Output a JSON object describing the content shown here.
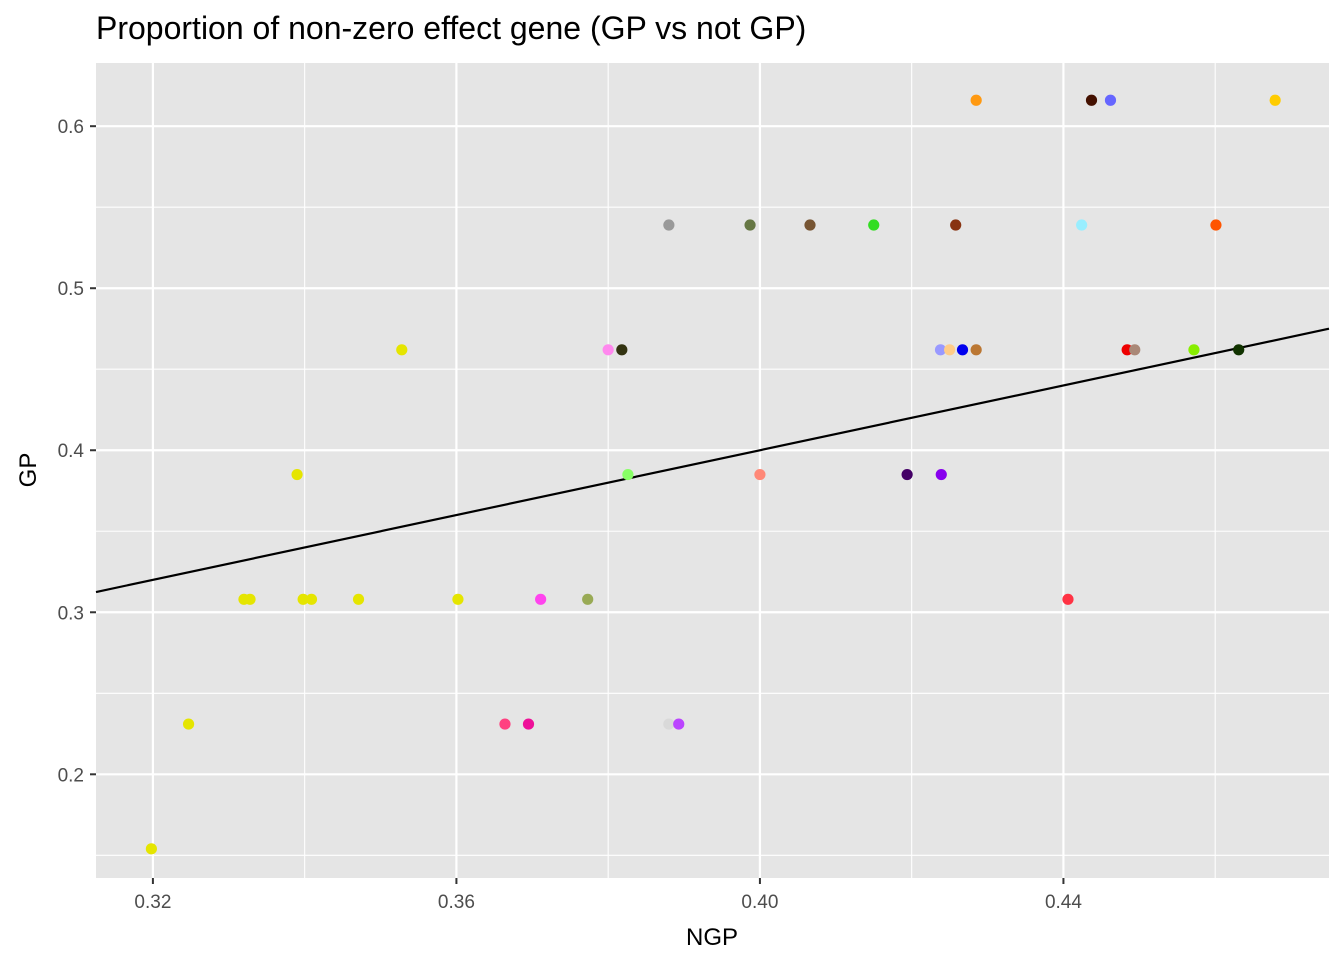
{
  "chart_data": {
    "type": "scatter",
    "title": "Proportion of non-zero effect gene (GP vs not GP)",
    "xlabel": "NGP",
    "ylabel": "GP",
    "xlim": [
      0.3125,
      0.475
    ],
    "ylim": [
      0.136,
      0.639
    ],
    "x_ticks": [
      0.32,
      0.36,
      0.4,
      0.44
    ],
    "x_tick_labels": [
      "0.32",
      "0.36",
      "0.40",
      "0.44"
    ],
    "y_ticks": [
      0.2,
      0.3,
      0.4,
      0.5,
      0.6
    ],
    "y_tick_labels": [
      "0.2",
      "0.3",
      "0.4",
      "0.5",
      "0.6"
    ],
    "grid": true,
    "background": "#e5e5e5",
    "grid_color": "#ffffff",
    "legend": "none",
    "points": [
      {
        "x": 0.3198,
        "y": 0.154,
        "color": "#e5e500"
      },
      {
        "x": 0.3247,
        "y": 0.231,
        "color": "#e5e500"
      },
      {
        "x": 0.332,
        "y": 0.308,
        "color": "#e5e500"
      },
      {
        "x": 0.3328,
        "y": 0.308,
        "color": "#e5e500"
      },
      {
        "x": 0.339,
        "y": 0.385,
        "color": "#e5e500"
      },
      {
        "x": 0.3398,
        "y": 0.308,
        "color": "#e5e500"
      },
      {
        "x": 0.3409,
        "y": 0.308,
        "color": "#e5e500"
      },
      {
        "x": 0.3471,
        "y": 0.308,
        "color": "#e5e500"
      },
      {
        "x": 0.3528,
        "y": 0.462,
        "color": "#e5e500"
      },
      {
        "x": 0.3602,
        "y": 0.308,
        "color": "#e5e500"
      },
      {
        "x": 0.3664,
        "y": 0.231,
        "color": "#ff4080"
      },
      {
        "x": 0.3695,
        "y": 0.231,
        "color": "#ee1099"
      },
      {
        "x": 0.3711,
        "y": 0.308,
        "color": "#ff44ee"
      },
      {
        "x": 0.3773,
        "y": 0.308,
        "color": "#99aa55"
      },
      {
        "x": 0.38,
        "y": 0.462,
        "color": "#ff88ee"
      },
      {
        "x": 0.3818,
        "y": 0.462,
        "color": "#333311"
      },
      {
        "x": 0.3826,
        "y": 0.385,
        "color": "#88ff66"
      },
      {
        "x": 0.388,
        "y": 0.231,
        "color": "#d9d9d9"
      },
      {
        "x": 0.388,
        "y": 0.539,
        "color": "#999999"
      },
      {
        "x": 0.3893,
        "y": 0.231,
        "color": "#bb44ff"
      },
      {
        "x": 0.3987,
        "y": 0.539,
        "color": "#667744"
      },
      {
        "x": 0.4,
        "y": 0.385,
        "color": "#ff8877"
      },
      {
        "x": 0.4066,
        "y": 0.539,
        "color": "#775533"
      },
      {
        "x": 0.415,
        "y": 0.539,
        "color": "#33dd22"
      },
      {
        "x": 0.4194,
        "y": 0.385,
        "color": "#440066"
      },
      {
        "x": 0.4239,
        "y": 0.385,
        "color": "#8800ee"
      },
      {
        "x": 0.4238,
        "y": 0.462,
        "color": "#9999ff"
      },
      {
        "x": 0.425,
        "y": 0.462,
        "color": "#ffcc88"
      },
      {
        "x": 0.4258,
        "y": 0.539,
        "color": "#883311"
      },
      {
        "x": 0.4267,
        "y": 0.462,
        "color": "#0000ee"
      },
      {
        "x": 0.4285,
        "y": 0.462,
        "color": "#bb7733"
      },
      {
        "x": 0.4285,
        "y": 0.616,
        "color": "#ff9911"
      },
      {
        "x": 0.4406,
        "y": 0.308,
        "color": "#ff3344"
      },
      {
        "x": 0.4424,
        "y": 0.539,
        "color": "#99eeff"
      },
      {
        "x": 0.4437,
        "y": 0.616,
        "color": "#441100"
      },
      {
        "x": 0.4462,
        "y": 0.616,
        "color": "#6666ff"
      },
      {
        "x": 0.4484,
        "y": 0.462,
        "color": "#ee0000"
      },
      {
        "x": 0.4494,
        "y": 0.462,
        "color": "#aa8877"
      },
      {
        "x": 0.4572,
        "y": 0.462,
        "color": "#88ee00"
      },
      {
        "x": 0.4601,
        "y": 0.539,
        "color": "#ff5500"
      },
      {
        "x": 0.4631,
        "y": 0.462,
        "color": "#113300"
      },
      {
        "x": 0.4679,
        "y": 0.616,
        "color": "#ffcc00"
      }
    ],
    "reference_line": {
      "x": [
        0.3125,
        0.475
      ],
      "y": [
        0.3125,
        0.475
      ],
      "color": "#000000"
    }
  }
}
